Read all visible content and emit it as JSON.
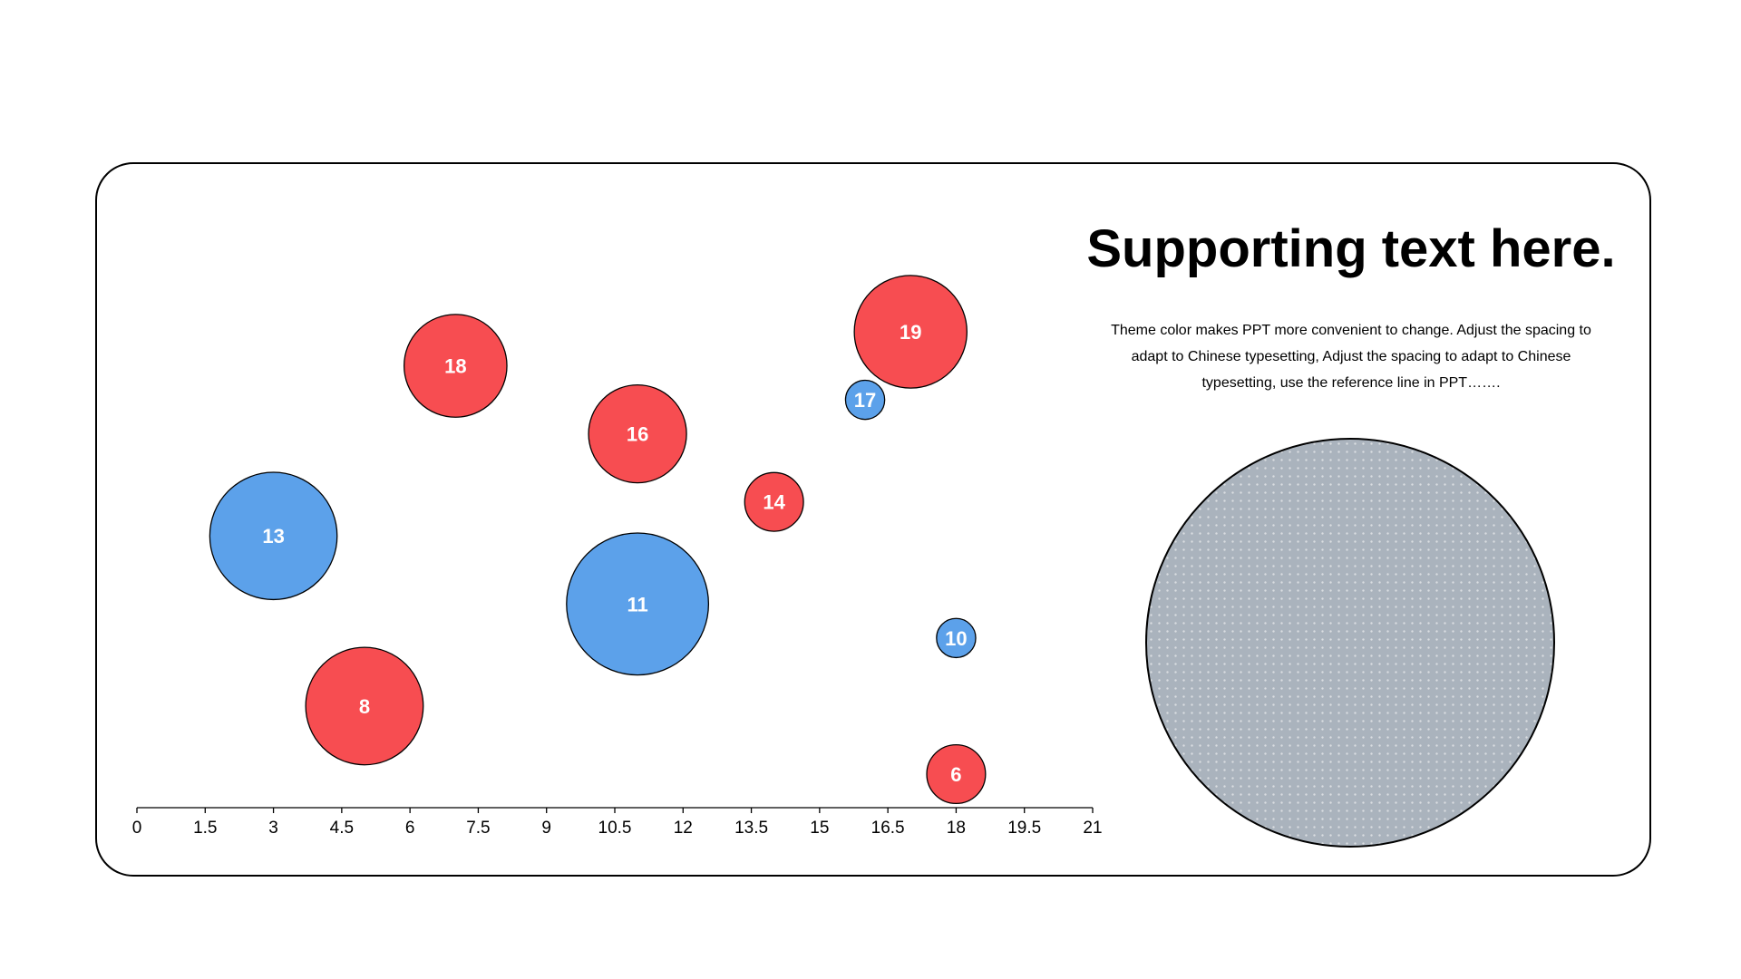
{
  "heading": "Supporting text here.",
  "body_text": "Theme color makes PPT more convenient to change. Adjust the spacing to adapt to Chinese typesetting, Adjust the spacing to adapt to Chinese typesetting, use the reference line in PPT…….",
  "picture_placeholder": {
    "fill_color": "#aab3bd",
    "pattern": "dotted"
  },
  "colors": {
    "red": "#f74d51",
    "blue": "#5ca1ea",
    "outline": "#000000",
    "label": "#ffffff"
  },
  "chart_data": {
    "type": "scatter",
    "title": "",
    "xlabel": "",
    "ylabel": "",
    "xlim": [
      0,
      21
    ],
    "x_ticks": [
      "0",
      "1.5",
      "3",
      "4.5",
      "6",
      "7.5",
      "9",
      "10.5",
      "12",
      "13.5",
      "15",
      "16.5",
      "18",
      "19.5",
      "21"
    ],
    "y_axis_visible": false,
    "grid": false,
    "legend": "none",
    "points": [
      {
        "label": "13",
        "x": 3,
        "y": 13,
        "size": 13,
        "color": "blue"
      },
      {
        "label": "8",
        "x": 5,
        "y": 8,
        "size": 12,
        "color": "red"
      },
      {
        "label": "18",
        "x": 7,
        "y": 18,
        "size": 10.5,
        "color": "red"
      },
      {
        "label": "16",
        "x": 11,
        "y": 16,
        "size": 10,
        "color": "red"
      },
      {
        "label": "11",
        "x": 11,
        "y": 11,
        "size": 14.5,
        "color": "blue"
      },
      {
        "label": "14",
        "x": 14,
        "y": 14,
        "size": 6,
        "color": "red"
      },
      {
        "label": "17",
        "x": 16,
        "y": 17,
        "size": 4,
        "color": "blue"
      },
      {
        "label": "19",
        "x": 17,
        "y": 19,
        "size": 11.5,
        "color": "red"
      },
      {
        "label": "10",
        "x": 18,
        "y": 10,
        "size": 4,
        "color": "blue"
      },
      {
        "label": "6",
        "x": 18,
        "y": 6,
        "size": 6,
        "color": "red"
      }
    ]
  }
}
